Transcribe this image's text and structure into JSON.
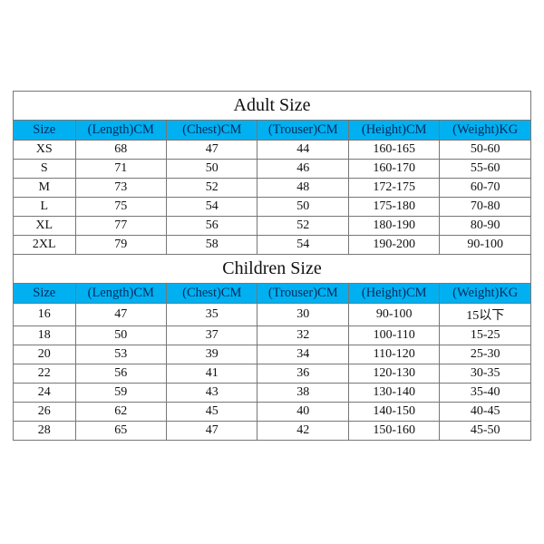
{
  "colors": {
    "header_bg": "#00b0f0",
    "header_text": "#002a5c",
    "border": "#777777",
    "background": "#ffffff",
    "text": "#111111"
  },
  "columns": [
    "Size",
    "(Length)CM",
    "(Chest)CM",
    "(Trouser)CM",
    "(Height)CM",
    "(Weight)KG"
  ],
  "adult": {
    "title": "Adult Size",
    "rows": [
      [
        "XS",
        "68",
        "47",
        "44",
        "160-165",
        "50-60"
      ],
      [
        "S",
        "71",
        "50",
        "46",
        "160-170",
        "55-60"
      ],
      [
        "M",
        "73",
        "52",
        "48",
        "172-175",
        "60-70"
      ],
      [
        "L",
        "75",
        "54",
        "50",
        "175-180",
        "70-80"
      ],
      [
        "XL",
        "77",
        "56",
        "52",
        "180-190",
        "80-90"
      ],
      [
        "2XL",
        "79",
        "58",
        "54",
        "190-200",
        "90-100"
      ]
    ]
  },
  "children": {
    "title": "Children Size",
    "rows": [
      [
        "16",
        "47",
        "35",
        "30",
        "90-100",
        "15以下"
      ],
      [
        "18",
        "50",
        "37",
        "32",
        "100-110",
        "15-25"
      ],
      [
        "20",
        "53",
        "39",
        "34",
        "110-120",
        "25-30"
      ],
      [
        "22",
        "56",
        "41",
        "36",
        "120-130",
        "30-35"
      ],
      [
        "24",
        "59",
        "43",
        "38",
        "130-140",
        "35-40"
      ],
      [
        "26",
        "62",
        "45",
        "40",
        "140-150",
        "40-45"
      ],
      [
        "28",
        "65",
        "47",
        "42",
        "150-160",
        "45-50"
      ]
    ]
  }
}
